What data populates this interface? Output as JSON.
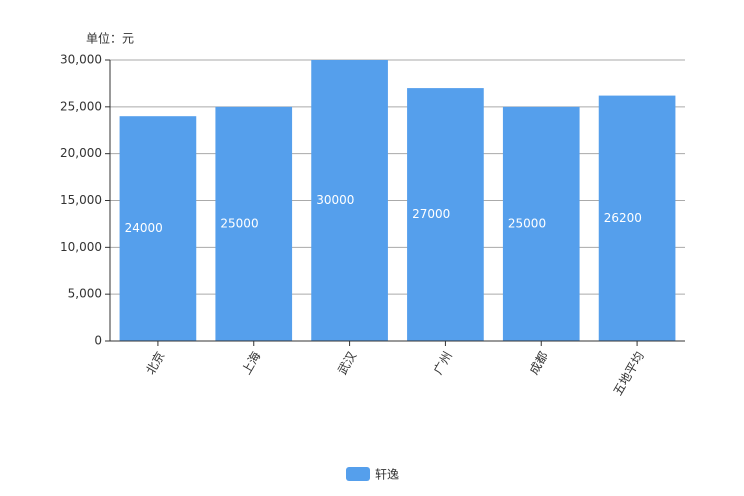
{
  "chart_data": {
    "type": "bar",
    "y_label": "单位：元",
    "categories": [
      "北京",
      "上海",
      "武汉",
      "广州",
      "成都",
      "五地平均"
    ],
    "series": [
      {
        "name": "轩逸",
        "color": "#559fec",
        "values": [
          24000,
          25000,
          30000,
          27000,
          25000,
          26200
        ]
      }
    ],
    "ylim": [
      0,
      30000
    ],
    "yticks": [
      0,
      {
        "value": 5000,
        "label": "5,000"
      },
      {
        "value": 10000,
        "label": "10,000"
      },
      {
        "value": 15000,
        "label": "15,000"
      },
      {
        "value": 20000,
        "label": "20,000"
      },
      {
        "value": 25000,
        "label": "25,000"
      },
      {
        "value": 30000,
        "label": "30,000"
      }
    ],
    "grid": true,
    "legend": "bottom"
  }
}
